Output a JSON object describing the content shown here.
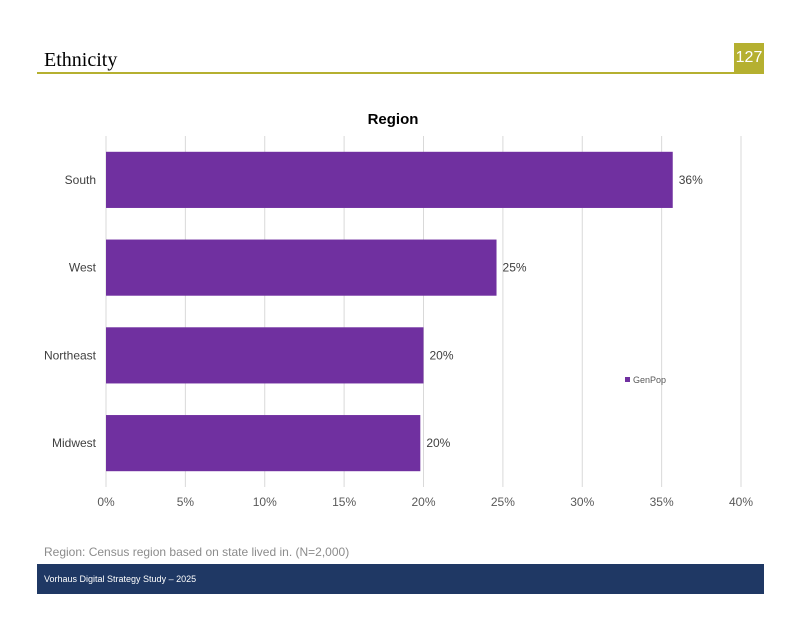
{
  "page": {
    "title": "Ethnicity",
    "page_number": "127",
    "footnote": "Region: Census region based on state lived in. (N=2,000)",
    "footer": "Vorhaus Digital Strategy Study – 2025"
  },
  "chart_data": {
    "type": "bar",
    "orientation": "horizontal",
    "title": "Region",
    "categories": [
      "South",
      "West",
      "Northeast",
      "Midwest"
    ],
    "series": [
      {
        "name": "GenPop",
        "values": [
          35.7,
          24.6,
          20.0,
          19.8
        ],
        "labels": [
          "36%",
          "25%",
          "20%",
          "20%"
        ],
        "color": "#7030a0"
      }
    ],
    "xlim": [
      0,
      40
    ],
    "xticks": [
      "0%",
      "5%",
      "10%",
      "15%",
      "20%",
      "25%",
      "30%",
      "35%",
      "40%"
    ],
    "grid": true,
    "legend_position": "right"
  }
}
